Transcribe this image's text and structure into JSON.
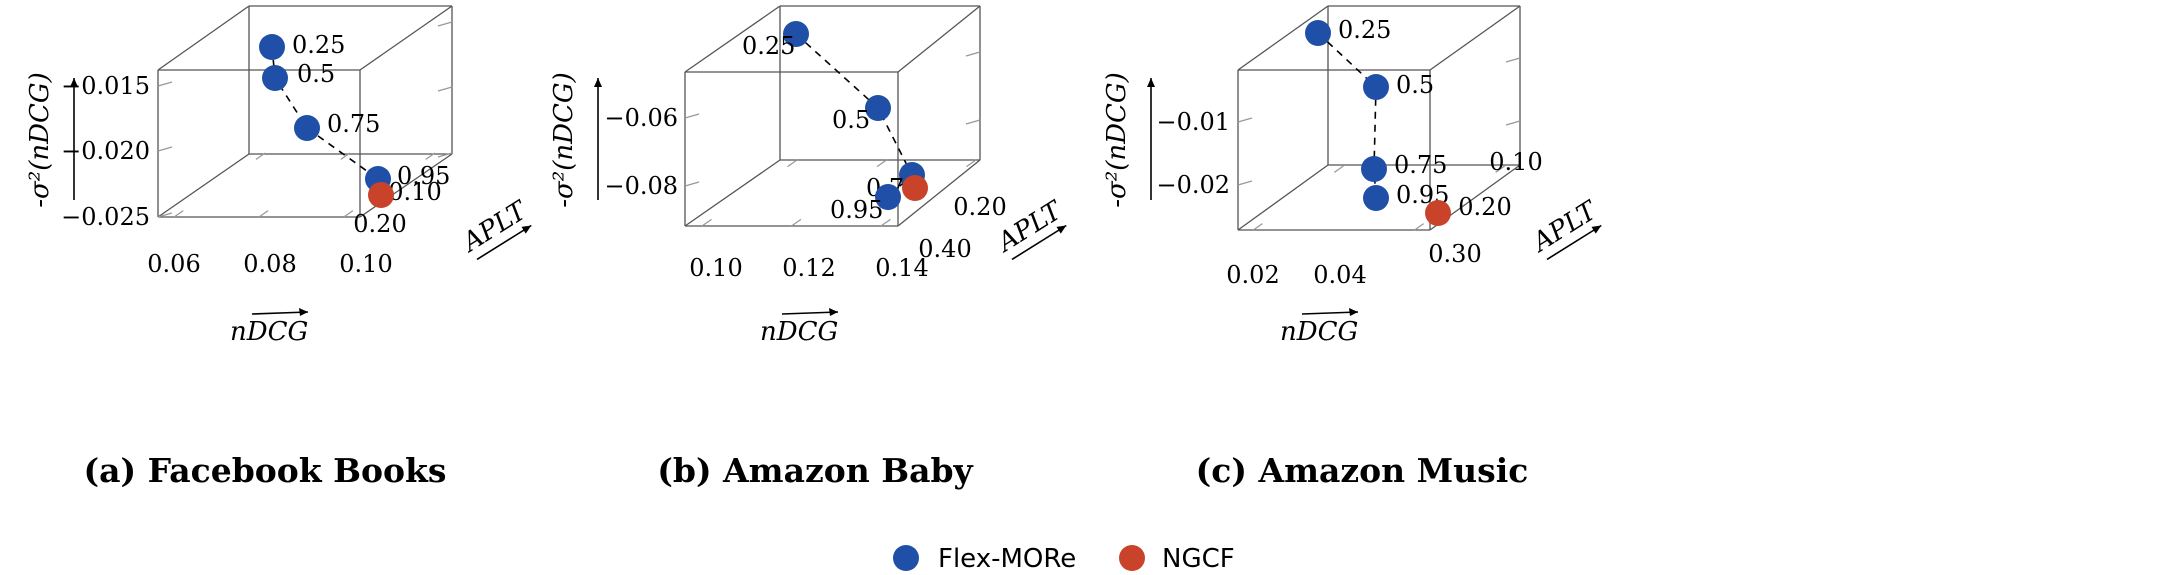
{
  "legend": {
    "items": [
      {
        "label": "Flex-MORe",
        "color": "#1f4fa6"
      },
      {
        "label": "NGCF",
        "color": "#c9432a"
      }
    ]
  },
  "chart_data": [
    {
      "type": "scatter",
      "caption": "(a) Facebook Books",
      "xlabel": "nDCG",
      "ylabel": "APLT",
      "zlabel": "-σ²(nDCG)",
      "x_ticks": [
        "0.06",
        "0.08",
        "0.10"
      ],
      "y_ticks": [
        "0.10",
        "0.20"
      ],
      "z_ticks": [
        "−0.015",
        "−0.020",
        "−0.025"
      ],
      "series": [
        {
          "name": "Flex-MORe",
          "color": "#1f4fa6",
          "connected": true,
          "points": [
            {
              "label": "0.25"
            },
            {
              "label": "0.5"
            },
            {
              "label": "0.75"
            },
            {
              "label": "0.95"
            }
          ]
        },
        {
          "name": "NGCF",
          "color": "#c9432a",
          "connected": false,
          "points": [
            {
              "label": ""
            }
          ]
        }
      ]
    },
    {
      "type": "scatter",
      "caption": "(b) Amazon Baby",
      "xlabel": "nDCG",
      "ylabel": "APLT",
      "zlabel": "-σ²(nDCG)",
      "x_ticks": [
        "0.10",
        "0.12",
        "0.14"
      ],
      "y_ticks": [
        "0.20",
        "0.40"
      ],
      "z_ticks": [
        "−0.06",
        "−0.08"
      ],
      "series": [
        {
          "name": "Flex-MORe",
          "color": "#1f4fa6",
          "connected": true,
          "points": [
            {
              "label": "0.25"
            },
            {
              "label": "0.5"
            },
            {
              "label": "0.75"
            },
            {
              "label": "0.95"
            }
          ]
        },
        {
          "name": "NGCF",
          "color": "#c9432a",
          "connected": false,
          "points": [
            {
              "label": ""
            }
          ]
        }
      ]
    },
    {
      "type": "scatter",
      "caption": "(c) Amazon Music",
      "xlabel": "nDCG",
      "ylabel": "APLT",
      "zlabel": "-σ²(nDCG)",
      "x_ticks": [
        "0.02",
        "0.04"
      ],
      "y_ticks": [
        "0.10",
        "0.20",
        "0.30"
      ],
      "z_ticks": [
        "−0.01",
        "−0.02"
      ],
      "series": [
        {
          "name": "Flex-MORe",
          "color": "#1f4fa6",
          "connected": true,
          "points": [
            {
              "label": "0.25"
            },
            {
              "label": "0.5"
            },
            {
              "label": "0.75"
            },
            {
              "label": "0.95"
            }
          ]
        },
        {
          "name": "NGCF",
          "color": "#c9432a",
          "connected": false,
          "points": [
            {
              "label": ""
            }
          ]
        }
      ]
    }
  ]
}
